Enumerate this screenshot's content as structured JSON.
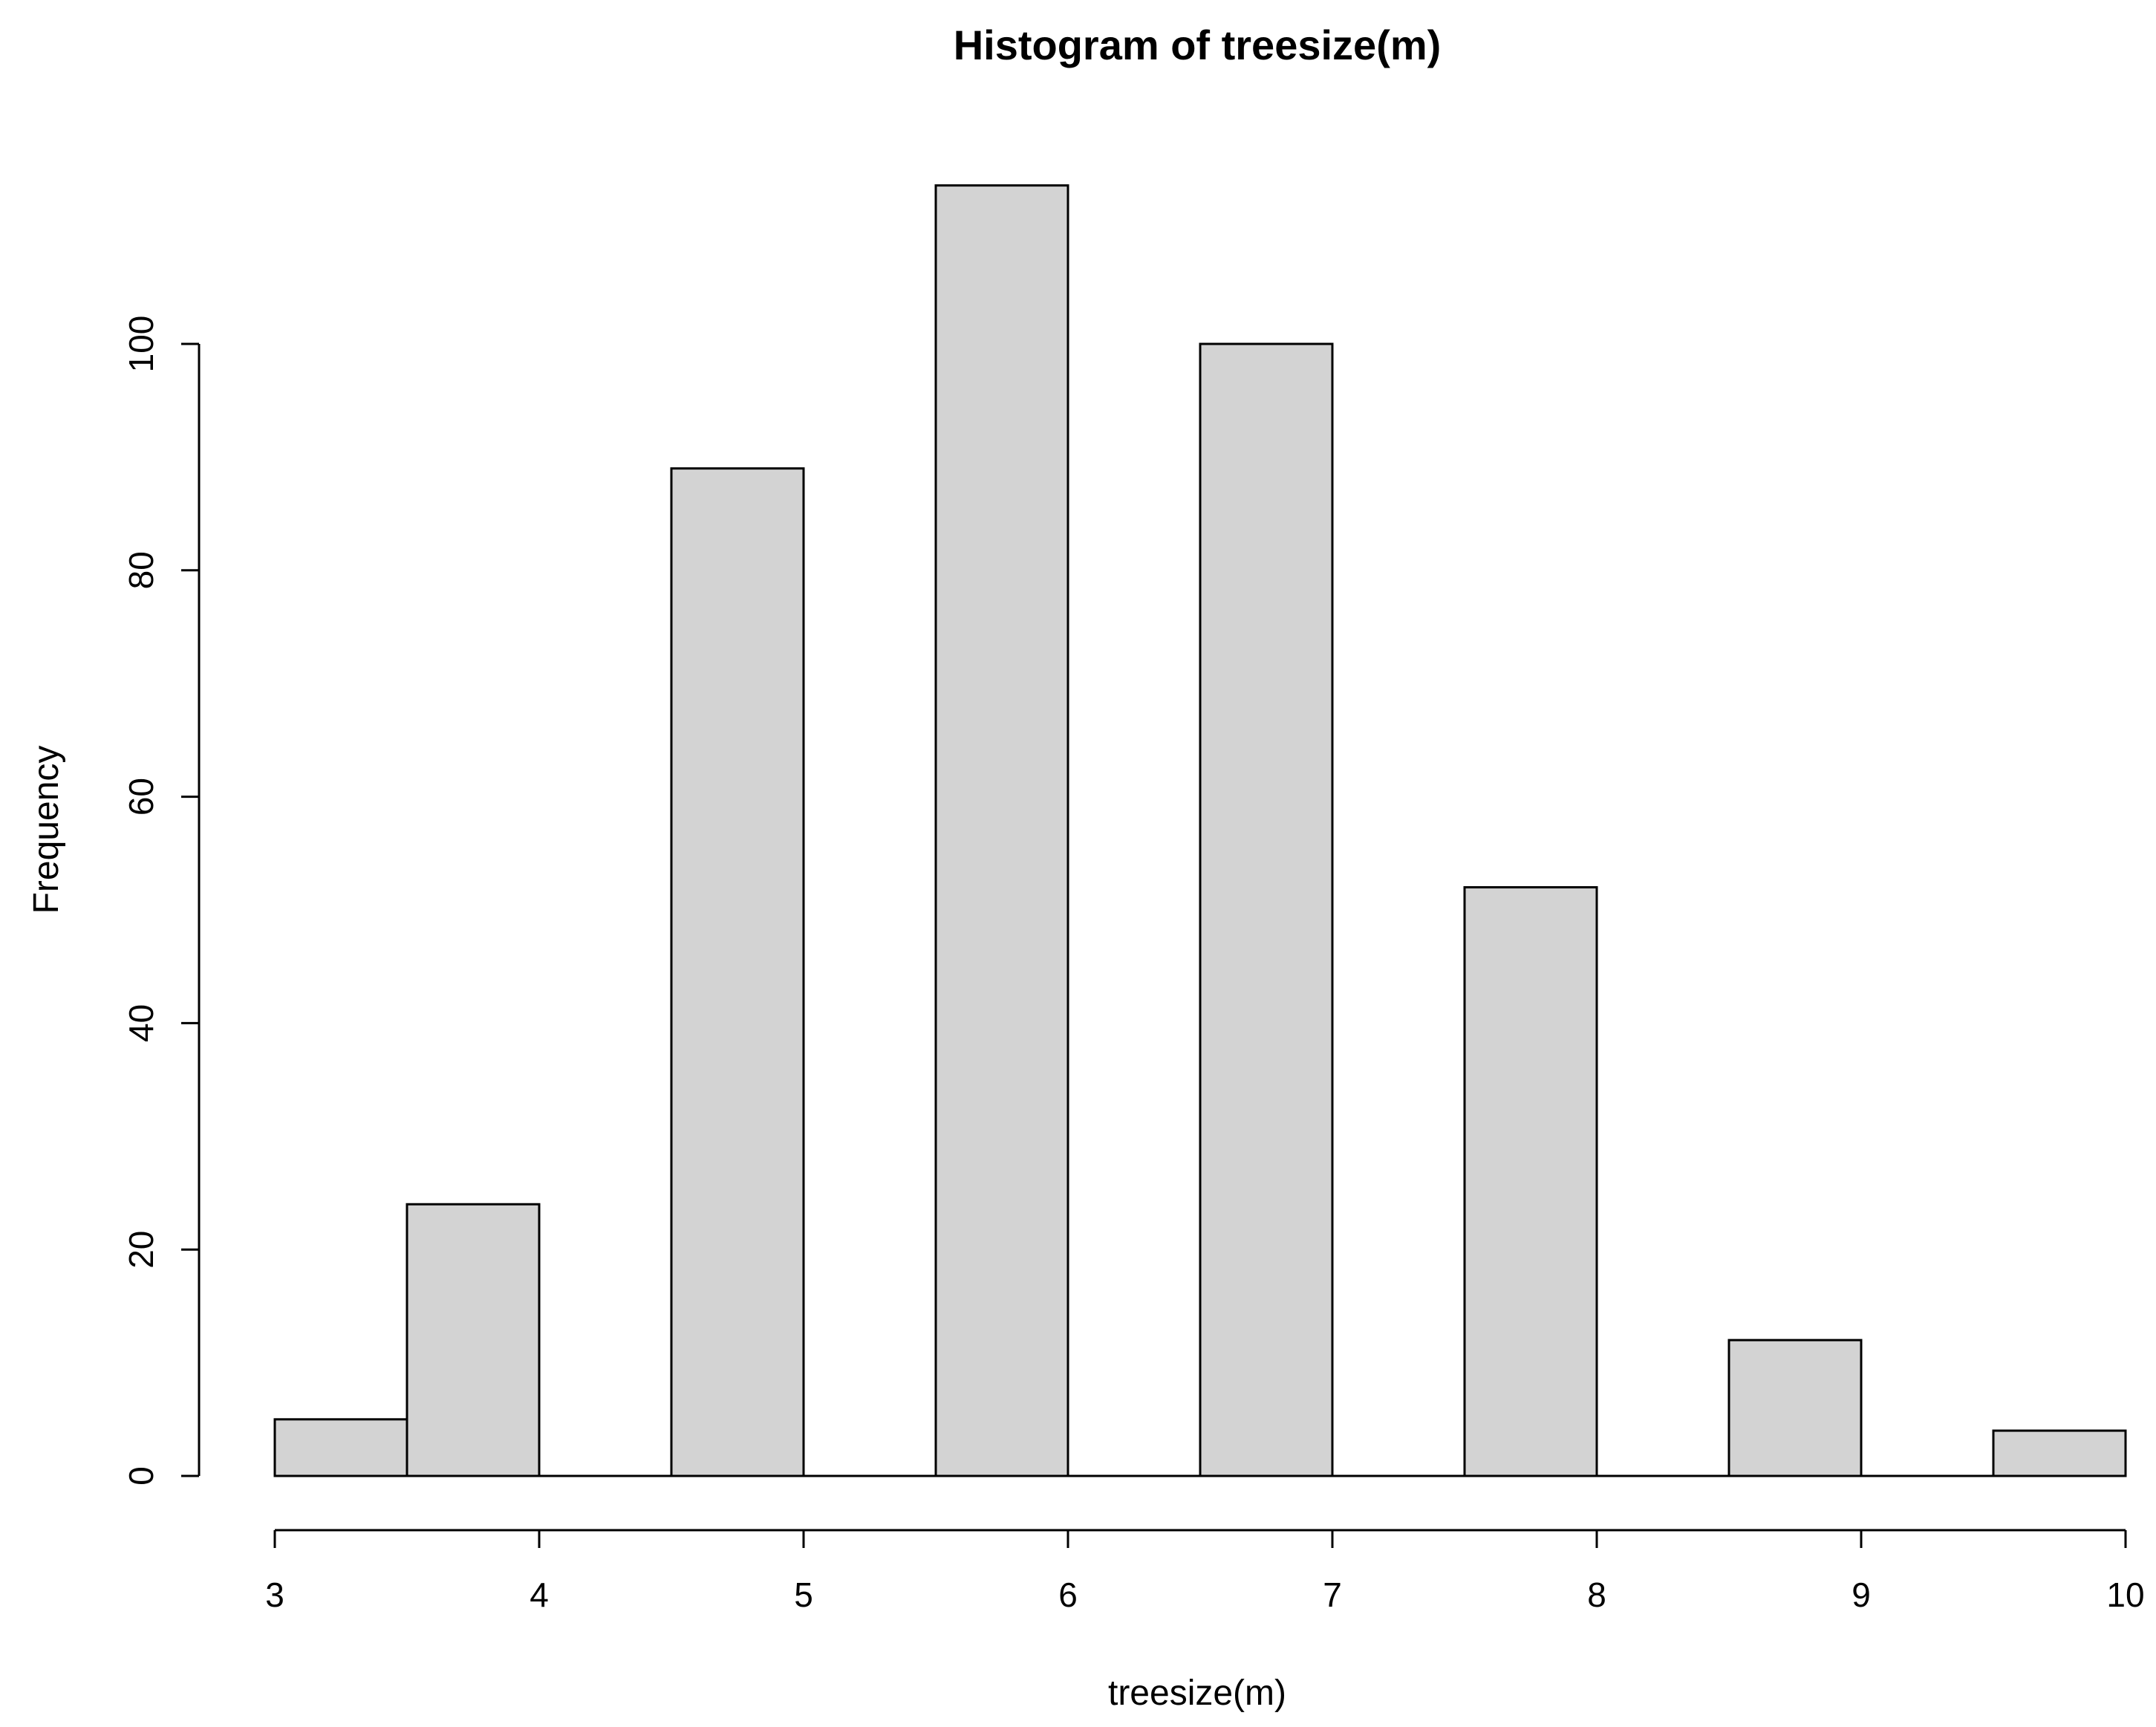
{
  "chart_data": {
    "type": "bar",
    "title": "Histogram of treesize(m)",
    "xlabel": "treesize(m)",
    "ylabel": "Frequency",
    "bins": [
      {
        "start": 3.0,
        "end": 3.5,
        "count": 5
      },
      {
        "start": 3.5,
        "end": 4.0,
        "count": 24
      },
      {
        "start": 4.0,
        "end": 4.5,
        "count": 0
      },
      {
        "start": 4.5,
        "end": 5.0,
        "count": 89
      },
      {
        "start": 5.0,
        "end": 5.5,
        "count": 0
      },
      {
        "start": 5.5,
        "end": 6.0,
        "count": 114
      },
      {
        "start": 6.0,
        "end": 6.5,
        "count": 0
      },
      {
        "start": 6.5,
        "end": 7.0,
        "count": 100
      },
      {
        "start": 7.0,
        "end": 7.5,
        "count": 0
      },
      {
        "start": 7.5,
        "end": 8.0,
        "count": 52
      },
      {
        "start": 8.0,
        "end": 8.5,
        "count": 0
      },
      {
        "start": 8.5,
        "end": 9.0,
        "count": 12
      },
      {
        "start": 9.0,
        "end": 9.5,
        "count": 0
      },
      {
        "start": 9.5,
        "end": 10.0,
        "count": 4
      }
    ],
    "xlim": [
      3,
      10
    ],
    "ylim": [
      0,
      114
    ],
    "xticks": [
      "3",
      "4",
      "5",
      "6",
      "7",
      "8",
      "9",
      "10"
    ],
    "yticks": [
      "0",
      "20",
      "40",
      "60",
      "80",
      "100"
    ],
    "grid": false,
    "legend": "none",
    "colors": {
      "bar_fill": "#d3d3d3",
      "bar_stroke": "#000000",
      "background": "#ffffff"
    }
  }
}
